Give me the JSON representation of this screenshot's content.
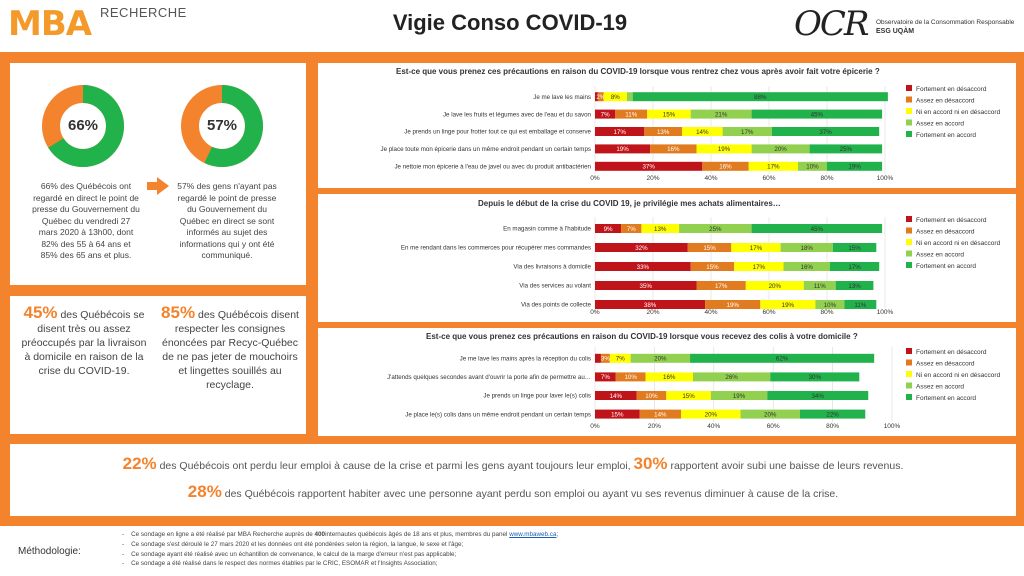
{
  "header": {
    "mba_logo": "MBA",
    "mba_sub": "RECHERCHE",
    "title": "Vigie Conso COVID-19",
    "ocr_logo": "OCR",
    "ocr_line1": "Observatoire de la Consommation Responsable",
    "ocr_line2": "ESG UQÀM"
  },
  "colors": {
    "orange": "#f3832d",
    "green_dark": "#22b24c",
    "green_light": "#92d050",
    "yellow": "#ffff00",
    "orange_bar": "#e07b1f",
    "red": "#c0141b"
  },
  "donuts": [
    {
      "value": 66,
      "label": "66%",
      "text": "66% des Québécois ont regardé en direct le point de presse du Gouvernement du Québec du vendredi 27 mars 2020 à 13h00, dont 82% des 55 à 64 ans et 85% des 65 ans et plus."
    },
    {
      "value": 57,
      "label": "57%",
      "text": "57% des gens n'ayant pas regardé le point de presse du Gouvernement du Québec en direct se sont informés au sujet des informations qui y ont été communiqué."
    }
  ],
  "stats": [
    {
      "big": "45%",
      "text": "des Québécois se disent très ou assez préoccupés par la livraison à domicile en raison de la crise du COVID-19."
    },
    {
      "big": "85%",
      "text": "des Québécois disent respecter les consignes énoncées par Recyc-Québec de ne pas jeter de mouchoirs et lingettes souillés au recyclage."
    }
  ],
  "chart_data": [
    {
      "type": "bar",
      "orientation": "horizontal-stacked",
      "title": "Est-ce que vous prenez ces précautions en raison du COVID-19 lorsque vous rentrez chez vous après avoir fait votre épicerie ?",
      "categories": [
        "Je me lave les mains",
        "Je lave les fruits et légumes avec de l'eau et du savon",
        "Je prends un linge pour frotter tout ce qui est emballage et conserve",
        "Je place toute mon épicerie dans un même endroit pendant un certain temps",
        "Je nettoie mon épicerie à l'eau de javel ou avec du produit antibactérien"
      ],
      "series": [
        {
          "name": "Fortement en désaccord",
          "values": [
            1,
            7,
            17,
            19,
            37
          ]
        },
        {
          "name": "Assez en désaccord",
          "values": [
            2,
            11,
            13,
            16,
            16
          ]
        },
        {
          "name": "Ni en accord ni en désaccord",
          "values": [
            8,
            15,
            14,
            19,
            17
          ]
        },
        {
          "name": "Assez en accord",
          "values": [
            2,
            21,
            17,
            20,
            10
          ]
        },
        {
          "name": "Fortement en accord",
          "values": [
            88,
            45,
            37,
            25,
            19
          ]
        }
      ],
      "labels": [
        [
          "",
          "2%",
          "8%",
          "",
          "88%"
        ],
        [
          "7%",
          "11%",
          "15%",
          "21%",
          "45%"
        ],
        [
          "17%",
          "13%",
          "14%",
          "17%",
          "37%"
        ],
        [
          "19%",
          "16%",
          "19%",
          "20%",
          "25%"
        ],
        [
          "37%",
          "16%",
          "17%",
          "10%",
          "19%"
        ]
      ],
      "xticks": [
        "0%",
        "20%",
        "40%",
        "60%",
        "80%",
        "100%"
      ],
      "xlim": [
        0,
        100
      ]
    },
    {
      "type": "bar",
      "orientation": "horizontal-stacked",
      "title": "Depuis le début de la crise du COVID 19, je privilégie mes achats alimentaires…",
      "categories": [
        "En magasin comme à l'habitude",
        "En me rendant dans les commerces pour récupérer mes commandes",
        "Via des livraisons à domicile",
        "Via des services au volant",
        "Via des points de collecte"
      ],
      "series": [
        {
          "name": "Fortement en désaccord",
          "values": [
            9,
            32,
            33,
            35,
            38
          ]
        },
        {
          "name": "Assez en désaccord",
          "values": [
            7,
            15,
            15,
            17,
            19
          ]
        },
        {
          "name": "Ni en accord ni en désaccord",
          "values": [
            13,
            17,
            17,
            20,
            19
          ]
        },
        {
          "name": "Assez en accord",
          "values": [
            25,
            18,
            16,
            11,
            10
          ]
        },
        {
          "name": "Fortement en accord",
          "values": [
            45,
            15,
            17,
            13,
            11
          ]
        }
      ],
      "labels": [
        [
          "9%",
          "7%",
          "13%",
          "25%",
          "45%"
        ],
        [
          "32%",
          "15%",
          "17%",
          "18%",
          "15%"
        ],
        [
          "33%",
          "15%",
          "17%",
          "16%",
          "17%"
        ],
        [
          "35%",
          "17%",
          "20%",
          "11%",
          "13%"
        ],
        [
          "38%",
          "19%",
          "19%",
          "10%",
          "11%"
        ]
      ],
      "xticks": [
        "0%",
        "20%",
        "40%",
        "60%",
        "80%",
        "100%"
      ],
      "xlim": [
        0,
        100
      ]
    },
    {
      "type": "bar",
      "orientation": "horizontal-stacked",
      "title": "Est-ce que vous prenez ces précautions en raison du COVID-19 lorsque vous recevez des colis à votre domicile ?",
      "categories": [
        "Je me lave les mains après la réception du colis",
        "J'attends quelques secondes avant d'ouvrir la porte afin de permettre au…",
        "Je prends un linge pour laver le(s) colis",
        "Je place le(s) colis dans un même endroit pendant un certain temps"
      ],
      "series": [
        {
          "name": "Fortement en désaccord",
          "values": [
            2,
            7,
            14,
            15
          ]
        },
        {
          "name": "Assez en désaccord",
          "values": [
            3,
            10,
            10,
            14
          ]
        },
        {
          "name": "Ni en accord ni en désaccord",
          "values": [
            7,
            16,
            15,
            20
          ]
        },
        {
          "name": "Assez en accord",
          "values": [
            20,
            26,
            19,
            20
          ]
        },
        {
          "name": "Fortement en accord",
          "values": [
            62,
            30,
            34,
            22
          ]
        }
      ],
      "labels": [
        [
          "",
          "3%",
          "7%",
          "20%",
          "62%"
        ],
        [
          "7%",
          "10%",
          "16%",
          "26%",
          "30%"
        ],
        [
          "14%",
          "10%",
          "15%",
          "19%",
          "34%"
        ],
        [
          "15%",
          "14%",
          "20%",
          "20%",
          "22%"
        ]
      ],
      "xticks": [
        "0%",
        "20%",
        "40%",
        "60%",
        "80%",
        "100%"
      ],
      "xlim": [
        0,
        100
      ]
    }
  ],
  "bottom": {
    "line1_big1": "22%",
    "line1_text1": "des Québécois ont perdu leur emploi à cause de la crise et parmi les gens ayant toujours leur emploi,",
    "line1_big2": "30%",
    "line1_text2": "rapportent avoir subi une baisse de leurs revenus.",
    "line2_big": "28%",
    "line2_text": "des Québécois rapportent habiter avec une personne ayant perdu son emploi ou ayant vu ses revenus diminuer à cause de la crise."
  },
  "methodology": {
    "label": "Méthodologie:",
    "item1_pre": "Ce sondage en ligne a été réalisé par MBA Recherche auprès de ",
    "item1_bold": "400",
    "item1_post": "internautes québécois âgés de 18 ans et plus, membres du panel ",
    "item1_link": "www.mbaweb.ca",
    "item1_end": ";",
    "item2": "Ce sondage s'est déroulé le 27 mars 2020 et les données ont été pondérées selon la région, la langue, le sexe et l'âge;",
    "item3": "Ce sondage ayant été réalisé avec un échantillon de convenance, le calcul de la marge d'erreur n'est pas applicable;",
    "item4": "Ce sondage a été réalisé dans le respect des normes établies par le CRIC, ESOMAR et l'Insights Association;"
  }
}
